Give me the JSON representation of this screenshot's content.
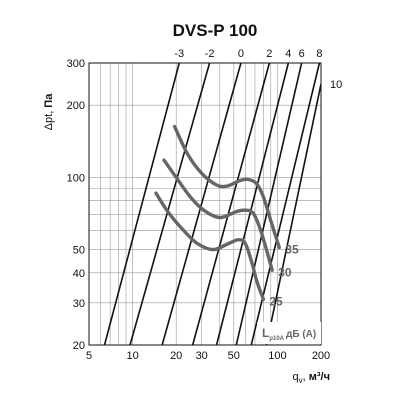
{
  "chart_data": {
    "type": "line",
    "title": "DVS-P 100",
    "ylabel_prefix": "Δpt,",
    "ylabel_unit": "Па",
    "xlabel_prefix": "q",
    "xlabel_sub": "v",
    "xlabel_unit": "м³/ч",
    "x_scale": "log",
    "y_scale": "log",
    "xlim": [
      5,
      200
    ],
    "ylim": [
      20,
      300
    ],
    "grid": true,
    "x_tick_labels": [
      {
        "v": 5,
        "label": "5"
      },
      {
        "v": 10,
        "label": "10"
      },
      {
        "v": 20,
        "label": "20"
      },
      {
        "v": 30,
        "label": "30"
      },
      {
        "v": 50,
        "label": "50"
      },
      {
        "v": 100,
        "label": "100"
      },
      {
        "v": 200,
        "label": "200"
      }
    ],
    "y_tick_labels": [
      {
        "v": 20,
        "label": "20"
      },
      {
        "v": 30,
        "label": "30"
      },
      {
        "v": 40,
        "label": "40"
      },
      {
        "v": 50,
        "label": "50"
      },
      {
        "v": 100,
        "label": "100"
      },
      {
        "v": 200,
        "label": "200"
      },
      {
        "v": 300,
        "label": "300"
      }
    ],
    "damper_lines": [
      {
        "label": "-3",
        "points": [
          [
            6.4,
            20
          ],
          [
            21,
            300
          ]
        ]
      },
      {
        "label": "-2",
        "points": [
          [
            9.6,
            20
          ],
          [
            34,
            300
          ]
        ]
      },
      {
        "label": "0",
        "points": [
          [
            16,
            20
          ],
          [
            56,
            300
          ]
        ]
      },
      {
        "label": "2",
        "points": [
          [
            26,
            20
          ],
          [
            88,
            300
          ]
        ]
      },
      {
        "label": "4",
        "points": [
          [
            38,
            20
          ],
          [
            119,
            300
          ]
        ]
      },
      {
        "label": "6",
        "points": [
          [
            52,
            20
          ],
          [
            147,
            300
          ]
        ]
      },
      {
        "label": "8",
        "points": [
          [
            66,
            20
          ],
          [
            195,
            300
          ]
        ]
      },
      {
        "label": "10",
        "points": [
          [
            84,
            20
          ],
          [
            200,
            245
          ]
        ]
      }
    ],
    "noise_curves": [
      {
        "label": "35",
        "points": [
          [
            19.5,
            163
          ],
          [
            24,
            125
          ],
          [
            30,
            104
          ],
          [
            38,
            93
          ],
          [
            45,
            92
          ],
          [
            55,
            97
          ],
          [
            63,
            98
          ],
          [
            72,
            94
          ],
          [
            80,
            83
          ],
          [
            90,
            66
          ],
          [
            103,
            51
          ]
        ]
      },
      {
        "label": "30",
        "points": [
          [
            16.5,
            118
          ],
          [
            20,
            100
          ],
          [
            25,
            83
          ],
          [
            31,
            73
          ],
          [
            40,
            68
          ],
          [
            52,
            72
          ],
          [
            60,
            73
          ],
          [
            68,
            71
          ],
          [
            76,
            61
          ],
          [
            84,
            50
          ],
          [
            92,
            41
          ]
        ]
      },
      {
        "label": "25",
        "points": [
          [
            14.5,
            86
          ],
          [
            17.5,
            72
          ],
          [
            22,
            61
          ],
          [
            28,
            53
          ],
          [
            36,
            50
          ],
          [
            46,
            53
          ],
          [
            54,
            55
          ],
          [
            60,
            53
          ],
          [
            66,
            45
          ],
          [
            72,
            37
          ],
          [
            80,
            31
          ]
        ]
      }
    ],
    "legend_label_main": "L",
    "legend_label_sub": "p10A",
    "legend_label_unit": "дБ (А)",
    "colors": {
      "lines": "#111111",
      "noise": "#666666",
      "grid": "#999999"
    }
  }
}
